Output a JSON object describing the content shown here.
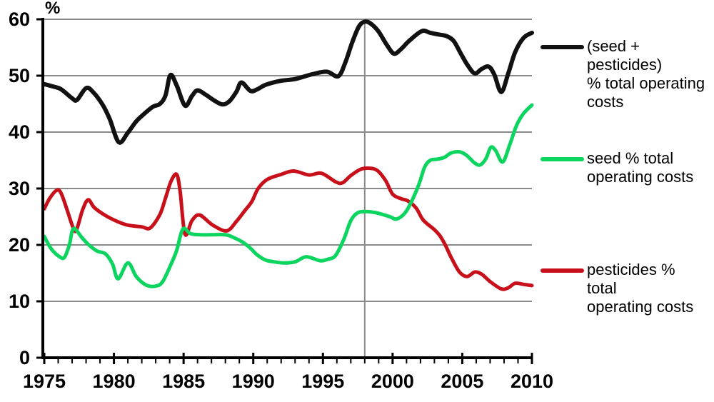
{
  "chart_data": {
    "type": "line",
    "title": "",
    "ylabel": "%",
    "xlabel": "",
    "xlim": [
      1975,
      2010
    ],
    "ylim": [
      0,
      60
    ],
    "x_ticks": [
      1975,
      1980,
      1985,
      1990,
      1995,
      2000,
      2005,
      2010
    ],
    "x_minor_tick_interval": 1,
    "y_ticks": [
      0,
      10,
      20,
      30,
      40,
      50,
      60
    ],
    "grid": "horizontal",
    "vertical_gridline_x": 1998,
    "legend_position": "right",
    "colors": {
      "axis": "#000000",
      "gridline": "#8a8a8a",
      "background": "#ffffff"
    },
    "series": [
      {
        "name": "(seed + pesticides) % total operating costs",
        "color": "#111111",
        "stroke_width": 6,
        "label_lines": [
          "(seed +",
          "pesticides)",
          "% total operating",
          "costs"
        ],
        "points": [
          [
            1975.0,
            48.5
          ],
          [
            1975.6,
            48.1
          ],
          [
            1976.2,
            47.6
          ],
          [
            1977.0,
            46.0
          ],
          [
            1977.35,
            45.7
          ],
          [
            1978.0,
            47.8
          ],
          [
            1978.5,
            47.1
          ],
          [
            1979.2,
            44.8
          ],
          [
            1979.7,
            42.3
          ],
          [
            1980.35,
            38.2
          ],
          [
            1981.0,
            39.9
          ],
          [
            1981.6,
            41.9
          ],
          [
            1982.2,
            43.3
          ],
          [
            1982.8,
            44.5
          ],
          [
            1983.3,
            45.0
          ],
          [
            1983.7,
            46.5
          ],
          [
            1984.05,
            50.1
          ],
          [
            1984.5,
            48.3
          ],
          [
            1985.1,
            44.7
          ],
          [
            1985.6,
            46.4
          ],
          [
            1986.0,
            47.4
          ],
          [
            1986.6,
            46.6
          ],
          [
            1987.2,
            45.6
          ],
          [
            1987.8,
            44.9
          ],
          [
            1988.3,
            45.5
          ],
          [
            1988.8,
            47.2
          ],
          [
            1989.15,
            48.8
          ],
          [
            1989.8,
            47.3
          ],
          [
            1990.3,
            47.6
          ],
          [
            1990.9,
            48.4
          ],
          [
            1992.0,
            49.1
          ],
          [
            1993.0,
            49.4
          ],
          [
            1994.3,
            50.3
          ],
          [
            1995.3,
            50.7
          ],
          [
            1996.1,
            49.9
          ],
          [
            1996.6,
            52.3
          ],
          [
            1997.1,
            55.9
          ],
          [
            1997.6,
            58.8
          ],
          [
            1998.05,
            59.6
          ],
          [
            1998.5,
            59.1
          ],
          [
            1999.0,
            57.8
          ],
          [
            1999.6,
            55.4
          ],
          [
            2000.1,
            53.9
          ],
          [
            2000.6,
            54.7
          ],
          [
            2001.2,
            56.2
          ],
          [
            2002.1,
            57.9
          ],
          [
            2002.7,
            57.6
          ],
          [
            2003.3,
            57.3
          ],
          [
            2003.9,
            57.0
          ],
          [
            2004.4,
            56.1
          ],
          [
            2004.9,
            53.9
          ],
          [
            2005.4,
            51.8
          ],
          [
            2005.9,
            50.4
          ],
          [
            2006.4,
            51.2
          ],
          [
            2006.9,
            51.6
          ],
          [
            2007.3,
            50.2
          ],
          [
            2007.8,
            47.1
          ],
          [
            2008.3,
            50.4
          ],
          [
            2008.8,
            54.2
          ],
          [
            2009.4,
            56.7
          ],
          [
            2010.0,
            57.6
          ]
        ]
      },
      {
        "name": "seed % total operating costs",
        "color": "#0bd45f",
        "stroke_width": 5,
        "label_lines": [
          "seed % total",
          "operating costs"
        ],
        "points": [
          [
            1975.0,
            21.5
          ],
          [
            1975.5,
            19.3
          ],
          [
            1976.1,
            17.9
          ],
          [
            1976.45,
            17.8
          ],
          [
            1976.8,
            20.0
          ],
          [
            1977.1,
            22.9
          ],
          [
            1977.7,
            21.3
          ],
          [
            1978.2,
            20.0
          ],
          [
            1978.8,
            18.9
          ],
          [
            1979.4,
            18.4
          ],
          [
            1979.9,
            16.6
          ],
          [
            1980.3,
            14.0
          ],
          [
            1981.0,
            16.8
          ],
          [
            1981.6,
            14.4
          ],
          [
            1982.3,
            12.9
          ],
          [
            1983.0,
            12.7
          ],
          [
            1983.5,
            13.5
          ],
          [
            1984.1,
            16.6
          ],
          [
            1984.5,
            19.0
          ],
          [
            1984.95,
            22.8
          ],
          [
            1985.5,
            22.0
          ],
          [
            1986.2,
            21.8
          ],
          [
            1987.0,
            21.8
          ],
          [
            1988.0,
            21.8
          ],
          [
            1988.6,
            21.3
          ],
          [
            1989.3,
            20.4
          ],
          [
            1989.8,
            19.4
          ],
          [
            1990.3,
            18.2
          ],
          [
            1990.9,
            17.3
          ],
          [
            1991.5,
            17.0
          ],
          [
            1992.2,
            16.8
          ],
          [
            1993.0,
            17.0
          ],
          [
            1993.8,
            17.9
          ],
          [
            1994.8,
            17.2
          ],
          [
            1995.4,
            17.5
          ],
          [
            1995.9,
            18.1
          ],
          [
            1996.5,
            21.0
          ],
          [
            1997.0,
            24.3
          ],
          [
            1997.5,
            25.7
          ],
          [
            1998.2,
            25.9
          ],
          [
            1999.0,
            25.6
          ],
          [
            1999.8,
            25.0
          ],
          [
            2000.3,
            24.6
          ],
          [
            2000.9,
            25.7
          ],
          [
            2001.4,
            27.9
          ],
          [
            2001.9,
            30.8
          ],
          [
            2002.3,
            33.8
          ],
          [
            2002.7,
            35.0
          ],
          [
            2003.2,
            35.2
          ],
          [
            2003.7,
            35.5
          ],
          [
            2004.2,
            36.3
          ],
          [
            2004.8,
            36.5
          ],
          [
            2005.3,
            35.9
          ],
          [
            2005.9,
            34.5
          ],
          [
            2006.3,
            34.2
          ],
          [
            2006.7,
            35.3
          ],
          [
            2007.05,
            37.3
          ],
          [
            2007.4,
            36.7
          ],
          [
            2007.9,
            34.7
          ],
          [
            2008.4,
            37.7
          ],
          [
            2008.9,
            41.2
          ],
          [
            2009.4,
            43.3
          ],
          [
            2010.0,
            44.8
          ]
        ]
      },
      {
        "name": "pesticides % total operating costs",
        "color": "#c8101a",
        "stroke_width": 5,
        "label_lines": [
          "pesticides %",
          "total",
          "operating costs"
        ],
        "points": [
          [
            1975.0,
            26.4
          ],
          [
            1975.4,
            28.3
          ],
          [
            1975.9,
            29.7
          ],
          [
            1976.2,
            29.2
          ],
          [
            1976.6,
            26.5
          ],
          [
            1977.05,
            23.2
          ],
          [
            1977.3,
            22.6
          ],
          [
            1977.75,
            26.2
          ],
          [
            1978.15,
            28.0
          ],
          [
            1978.6,
            26.6
          ],
          [
            1979.4,
            25.2
          ],
          [
            1980.2,
            24.2
          ],
          [
            1981.0,
            23.5
          ],
          [
            1982.0,
            23.2
          ],
          [
            1982.6,
            23.0
          ],
          [
            1983.3,
            25.4
          ],
          [
            1983.7,
            28.3
          ],
          [
            1984.1,
            31.3
          ],
          [
            1984.5,
            32.5
          ],
          [
            1984.75,
            29.5
          ],
          [
            1985.1,
            21.9
          ],
          [
            1985.6,
            24.3
          ],
          [
            1986.15,
            25.3
          ],
          [
            1987.1,
            23.5
          ],
          [
            1988.1,
            22.5
          ],
          [
            1988.8,
            24.2
          ],
          [
            1989.4,
            26.1
          ],
          [
            1989.9,
            27.7
          ],
          [
            1990.35,
            30.0
          ],
          [
            1991.0,
            31.6
          ],
          [
            1992.0,
            32.5
          ],
          [
            1992.9,
            33.1
          ],
          [
            1994.0,
            32.4
          ],
          [
            1994.9,
            32.7
          ],
          [
            1995.9,
            31.2
          ],
          [
            1996.4,
            31.0
          ],
          [
            1997.0,
            32.3
          ],
          [
            1997.7,
            33.4
          ],
          [
            1998.3,
            33.6
          ],
          [
            1998.9,
            33.2
          ],
          [
            1999.5,
            31.4
          ],
          [
            2000.0,
            29.0
          ],
          [
            2000.6,
            28.2
          ],
          [
            2001.1,
            27.8
          ],
          [
            2001.7,
            26.5
          ],
          [
            2002.2,
            24.4
          ],
          [
            2003.0,
            22.7
          ],
          [
            2003.4,
            21.6
          ],
          [
            2003.8,
            19.9
          ],
          [
            2004.2,
            17.8
          ],
          [
            2004.8,
            15.2
          ],
          [
            2005.35,
            14.4
          ],
          [
            2005.9,
            15.2
          ],
          [
            2006.4,
            14.8
          ],
          [
            2007.0,
            13.5
          ],
          [
            2007.8,
            12.2
          ],
          [
            2008.3,
            12.4
          ],
          [
            2008.8,
            13.2
          ],
          [
            2009.4,
            13.0
          ],
          [
            2010.0,
            12.8
          ]
        ]
      }
    ]
  }
}
